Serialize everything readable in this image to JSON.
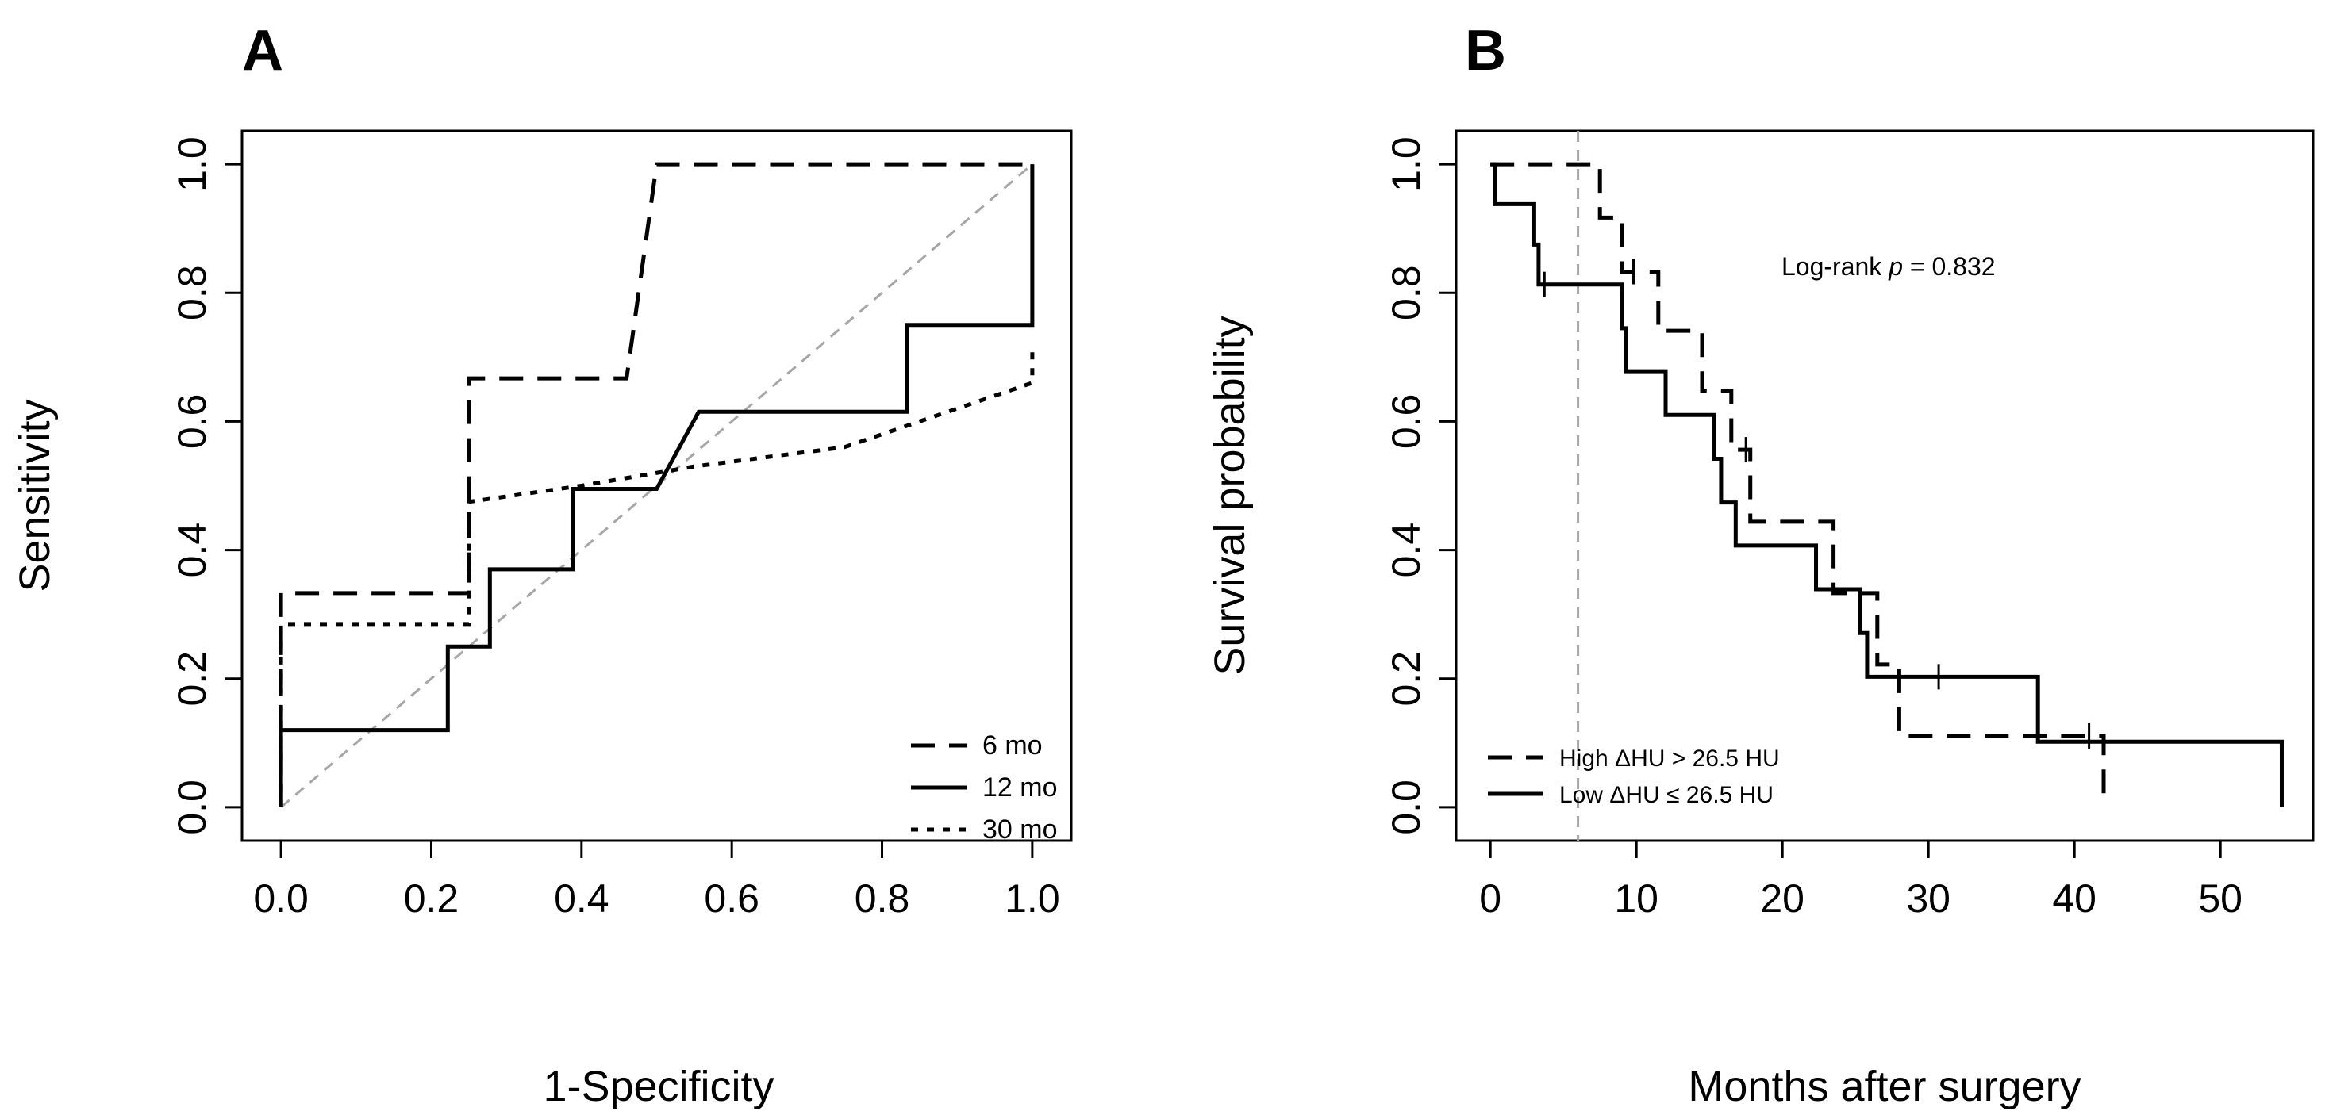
{
  "chart_data": [
    {
      "panel": "A",
      "type": "line",
      "panel_label": "A",
      "xlabel": "1-Specificity",
      "ylabel": "Sensitivity",
      "xlim": [
        0,
        1
      ],
      "ylim": [
        0,
        1
      ],
      "xticks": [
        "0.0",
        "0.2",
        "0.4",
        "0.6",
        "0.8",
        "1.0"
      ],
      "yticks": [
        "0.0",
        "0.2",
        "0.4",
        "0.6",
        "0.8",
        "1.0"
      ],
      "grid": false,
      "legend_position": "bottom-right",
      "reference_line": {
        "x": [
          0,
          1
        ],
        "y": [
          0,
          1
        ],
        "color": "#a6a6a6",
        "style": "dashed"
      },
      "series": [
        {
          "name": "6 mo",
          "style": "dashed",
          "x": [
            0,
            0,
            0.25,
            0.25,
            0.46,
            0.5,
            1.0
          ],
          "y": [
            0,
            0.333,
            0.333,
            0.667,
            0.667,
            1.0,
            1.0
          ]
        },
        {
          "name": "12 mo",
          "style": "solid",
          "x": [
            0,
            0,
            0.222,
            0.222,
            0.278,
            0.278,
            0.389,
            0.389,
            0.5,
            0.556,
            0.833,
            0.833,
            1.0,
            1.0
          ],
          "y": [
            0,
            0.12,
            0.12,
            0.25,
            0.25,
            0.37,
            0.37,
            0.495,
            0.495,
            0.615,
            0.615,
            0.75,
            0.75,
            1.0
          ]
        },
        {
          "name": "30 mo",
          "style": "dotted",
          "x": [
            0,
            0,
            0.25,
            0.25,
            0.4,
            0.55,
            0.75,
            0.9,
            1.0,
            1.0
          ],
          "y": [
            0,
            0.285,
            0.285,
            0.475,
            0.5,
            0.53,
            0.56,
            0.62,
            0.66,
            0.715
          ]
        }
      ]
    },
    {
      "panel": "B",
      "type": "line",
      "panel_label": "B",
      "xlabel": "Months after surgery",
      "ylabel": "Survival probability",
      "xlim": [
        0,
        54
      ],
      "ylim": [
        0,
        1
      ],
      "xticks": [
        "0",
        "10",
        "20",
        "30",
        "40",
        "50"
      ],
      "yticks": [
        "0.0",
        "0.2",
        "0.4",
        "0.6",
        "0.8",
        "1.0"
      ],
      "grid": false,
      "legend_position": "bottom-left",
      "annotation_prefix": "Log-rank ",
      "annotation_p": "p",
      "annotation_suffix": " = 0.832",
      "vertical_reference": {
        "x": 6,
        "color": "#a6a6a6",
        "style": "dashed"
      },
      "series": [
        {
          "name": "High ΔHU > 26.5 HU",
          "style": "dashed",
          "steps": [
            [
              0,
              1.0
            ],
            [
              7.5,
              0.917
            ],
            [
              9,
              0.833
            ],
            [
              11.5,
              0.741
            ],
            [
              14.5,
              0.648
            ],
            [
              16.5,
              0.556
            ],
            [
              17.8,
              0.444
            ],
            [
              23.5,
              0.333
            ],
            [
              26.5,
              0.222
            ],
            [
              28.0,
              0.111
            ],
            [
              42.0,
              0.0
            ]
          ],
          "end_x": 42.0,
          "censored": [
            [
              9.8,
              0.833
            ],
            [
              17.5,
              0.556
            ],
            [
              41.0,
              0.111
            ]
          ]
        },
        {
          "name": "Low ΔHU ≤ 26.5 HU",
          "style": "solid",
          "steps": [
            [
              0,
              1.0
            ],
            [
              0.3,
              0.938
            ],
            [
              3.0,
              0.875
            ],
            [
              3.3,
              0.813
            ],
            [
              9.0,
              0.745
            ],
            [
              9.3,
              0.678
            ],
            [
              12.0,
              0.61
            ],
            [
              15.3,
              0.542
            ],
            [
              15.8,
              0.474
            ],
            [
              16.8,
              0.407
            ],
            [
              22.3,
              0.339
            ],
            [
              25.3,
              0.271
            ],
            [
              25.8,
              0.203
            ],
            [
              37.5,
              0.102
            ],
            [
              54.2,
              0.0
            ]
          ],
          "end_x": 54.2,
          "censored": [
            [
              3.7,
              0.813
            ],
            [
              30.7,
              0.203
            ]
          ]
        }
      ]
    }
  ]
}
